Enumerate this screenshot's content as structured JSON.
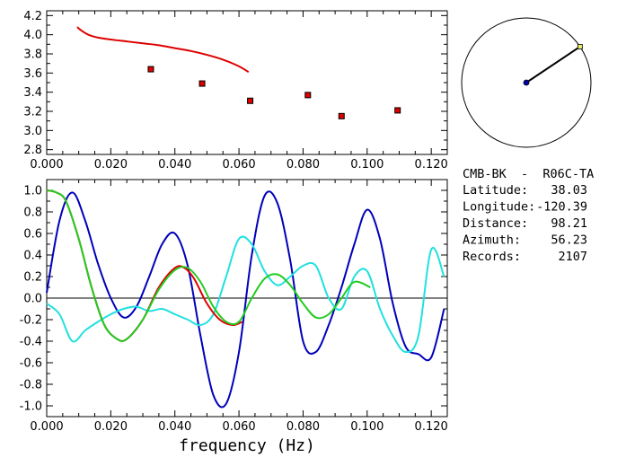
{
  "station_panel": {
    "name": "CMB-BK  -  R06C-TA",
    "fields": [
      {
        "label": "Latitude:",
        "value": "38.03"
      },
      {
        "label": "Longitude:",
        "value": "-120.39"
      },
      {
        "label": "Distance:",
        "value": "98.21"
      },
      {
        "label": "Azimuth:",
        "value": "56.23"
      },
      {
        "label": "Records:",
        "value": "2107"
      }
    ],
    "azimuth_deg": 56.23
  },
  "colors": {
    "red": "#dd0000",
    "blue": "#0000bb",
    "cyan": "#22e0e0",
    "green": "#22cc22",
    "marker_fill": "#dd0000",
    "station_dot": "#0000aa",
    "end_marker": "#eeee66"
  },
  "chart_data": [
    {
      "type": "line",
      "name": "dispersion",
      "xlim": [
        0.0,
        0.125
      ],
      "ylim": [
        2.75,
        4.25
      ],
      "xticks": [
        "0.000",
        "0.020",
        "0.040",
        "0.060",
        "0.080",
        "0.100",
        "0.120"
      ],
      "xtick_values": [
        0.0,
        0.02,
        0.04,
        0.06,
        0.08,
        0.1,
        0.12
      ],
      "yticks": [
        "2.8",
        "3.0",
        "3.2",
        "3.4",
        "3.6",
        "3.8",
        "4.0",
        "4.2"
      ],
      "ytick_values": [
        2.8,
        3.0,
        3.2,
        3.4,
        3.6,
        3.8,
        4.0,
        4.2
      ],
      "series": [
        {
          "style": "line",
          "color": "#dd0000",
          "x": [
            0.0095,
            0.011,
            0.013,
            0.016,
            0.02,
            0.025,
            0.03,
            0.035,
            0.04,
            0.045,
            0.05,
            0.055,
            0.06,
            0.063
          ],
          "y": [
            4.08,
            4.04,
            4.0,
            3.97,
            3.95,
            3.93,
            3.91,
            3.89,
            3.86,
            3.83,
            3.79,
            3.74,
            3.67,
            3.61
          ]
        },
        {
          "style": "points",
          "color": "#dd0000",
          "x": [
            0.0325,
            0.0485,
            0.0635,
            0.0815,
            0.092,
            0.1095
          ],
          "y": [
            3.64,
            3.49,
            3.31,
            3.37,
            3.15,
            3.21
          ]
        }
      ]
    },
    {
      "type": "line",
      "name": "correlation",
      "xlim": [
        0.0,
        0.125
      ],
      "ylim": [
        -1.1,
        1.1
      ],
      "xticks": [
        "0.000",
        "0.020",
        "0.040",
        "0.060",
        "0.080",
        "0.100",
        "0.120"
      ],
      "xtick_values": [
        0.0,
        0.02,
        0.04,
        0.06,
        0.08,
        0.1,
        0.12
      ],
      "yticks": [
        "1.0",
        "0.8",
        "0.6",
        "0.4",
        "0.2",
        "0.0",
        "-0.2",
        "-0.4",
        "-0.6",
        "-0.8",
        "-1.0"
      ],
      "ytick_values": [
        1.0,
        0.8,
        0.6,
        0.4,
        0.2,
        0.0,
        -0.2,
        -0.4,
        -0.6,
        -0.8,
        -1.0
      ],
      "zero_line": true,
      "xlabel": "frequency (Hz)",
      "series": [
        {
          "color": "#0000bb",
          "x": [
            0.0,
            0.004,
            0.008,
            0.012,
            0.016,
            0.02,
            0.024,
            0.028,
            0.032,
            0.036,
            0.04,
            0.044,
            0.048,
            0.052,
            0.056,
            0.06,
            0.064,
            0.068,
            0.072,
            0.076,
            0.08,
            0.084,
            0.088,
            0.092,
            0.096,
            0.1,
            0.104,
            0.108,
            0.112,
            0.116,
            0.12,
            0.124
          ],
          "y": [
            0.05,
            0.72,
            0.98,
            0.72,
            0.32,
            0.0,
            -0.18,
            -0.08,
            0.2,
            0.5,
            0.6,
            0.3,
            -0.35,
            -0.9,
            -0.98,
            -0.5,
            0.4,
            0.95,
            0.88,
            0.35,
            -0.4,
            -0.5,
            -0.25,
            0.1,
            0.5,
            0.82,
            0.55,
            -0.05,
            -0.45,
            -0.52,
            -0.55,
            -0.1
          ]
        },
        {
          "color": "#22e0e0",
          "x": [
            0.0,
            0.004,
            0.008,
            0.012,
            0.016,
            0.02,
            0.024,
            0.028,
            0.032,
            0.036,
            0.04,
            0.044,
            0.048,
            0.052,
            0.056,
            0.06,
            0.064,
            0.068,
            0.072,
            0.076,
            0.08,
            0.084,
            0.088,
            0.092,
            0.096,
            0.1,
            0.104,
            0.108,
            0.112,
            0.116,
            0.12,
            0.124
          ],
          "y": [
            -0.05,
            -0.15,
            -0.4,
            -0.3,
            -0.22,
            -0.15,
            -0.1,
            -0.08,
            -0.12,
            -0.1,
            -0.15,
            -0.2,
            -0.25,
            -0.15,
            0.2,
            0.55,
            0.5,
            0.25,
            0.12,
            0.2,
            0.3,
            0.3,
            0.0,
            -0.1,
            0.2,
            0.25,
            -0.1,
            -0.35,
            -0.5,
            -0.35,
            0.45,
            0.2
          ]
        },
        {
          "color": "#dd0000",
          "x": [
            0.0,
            0.003,
            0.006,
            0.01,
            0.014,
            0.018,
            0.022,
            0.025,
            0.03,
            0.035,
            0.04,
            0.043,
            0.046,
            0.05,
            0.054,
            0.058,
            0.061
          ],
          "y": [
            1.0,
            0.98,
            0.9,
            0.55,
            0.1,
            -0.25,
            -0.38,
            -0.38,
            -0.2,
            0.1,
            0.28,
            0.28,
            0.18,
            -0.05,
            -0.2,
            -0.25,
            -0.22
          ]
        },
        {
          "color": "#22cc22",
          "x": [
            0.0,
            0.003,
            0.006,
            0.01,
            0.014,
            0.018,
            0.022,
            0.025,
            0.03,
            0.035,
            0.04,
            0.044,
            0.048,
            0.052,
            0.056,
            0.06,
            0.064,
            0.068,
            0.072,
            0.076,
            0.08,
            0.084,
            0.088,
            0.092,
            0.096,
            0.101
          ],
          "y": [
            1.0,
            0.98,
            0.9,
            0.55,
            0.1,
            -0.25,
            -0.38,
            -0.38,
            -0.2,
            0.08,
            0.26,
            0.28,
            0.15,
            -0.08,
            -0.22,
            -0.22,
            0.0,
            0.18,
            0.22,
            0.12,
            -0.05,
            -0.18,
            -0.15,
            0.0,
            0.15,
            0.1
          ]
        }
      ]
    }
  ]
}
